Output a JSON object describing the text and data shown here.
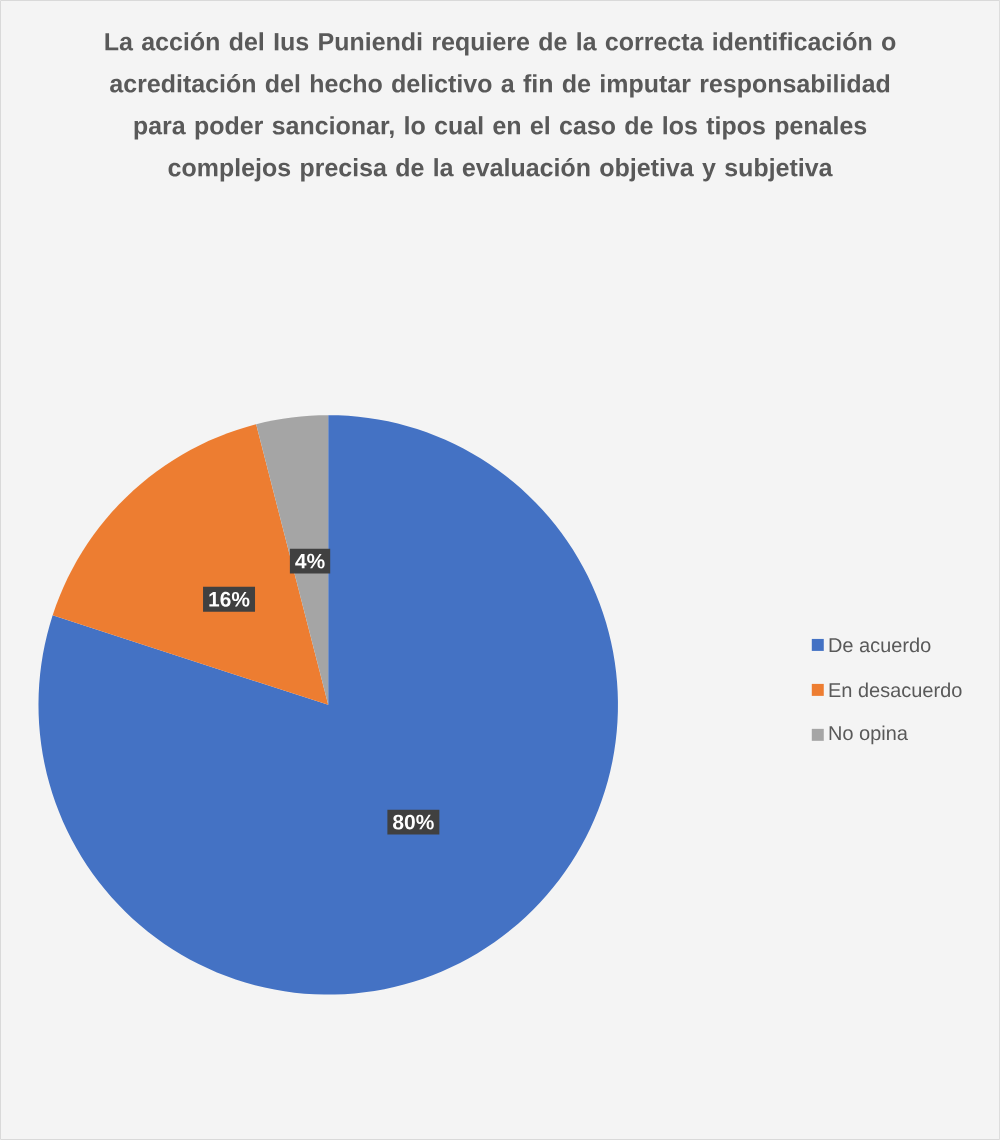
{
  "chart_data": {
    "type": "pie",
    "title": "La acción del Ius Puniendi requiere de la correcta identificación o acreditación del hecho delictivo a fin de imputar responsabilidad para poder sancionar, lo cual en el caso de los tipos penales complejos precisa de la evaluación objetiva y subjetiva",
    "categories": [
      "De acuerdo",
      "En desacuerdo",
      "No opina"
    ],
    "values": [
      80,
      16,
      4
    ],
    "colors": [
      "#4472c4",
      "#ed7d31",
      "#a5a5a5"
    ],
    "value_labels": [
      "80%",
      "16%",
      "4%"
    ],
    "legend": "right"
  }
}
